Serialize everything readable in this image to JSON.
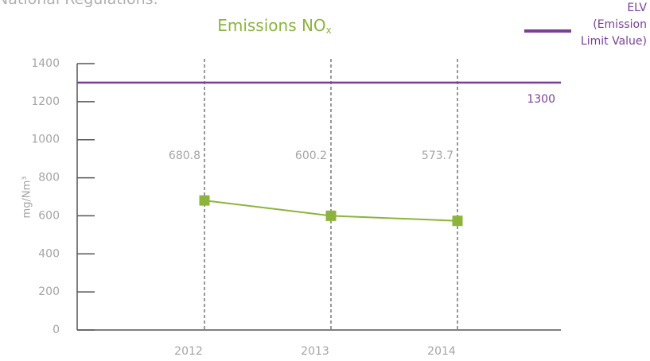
{
  "page_text": "National Regulations.",
  "chart_data": {
    "type": "line",
    "title": "Emissions NO",
    "title_subscript": "x",
    "y_label": "mg/Nm³",
    "categories": [
      "2012",
      "2013",
      "2014"
    ],
    "series": [
      {
        "color": "#8cb43c",
        "values": [
          680.8,
          600.2,
          573.7
        ]
      }
    ],
    "reference_line": {
      "name": "ELV (Emission Limit Value)",
      "value": 1300,
      "color": "#7b3f98"
    },
    "ylim": [
      0,
      1400
    ],
    "yticks": [
      0,
      200,
      400,
      600,
      800,
      1000,
      1200,
      1400
    ]
  }
}
